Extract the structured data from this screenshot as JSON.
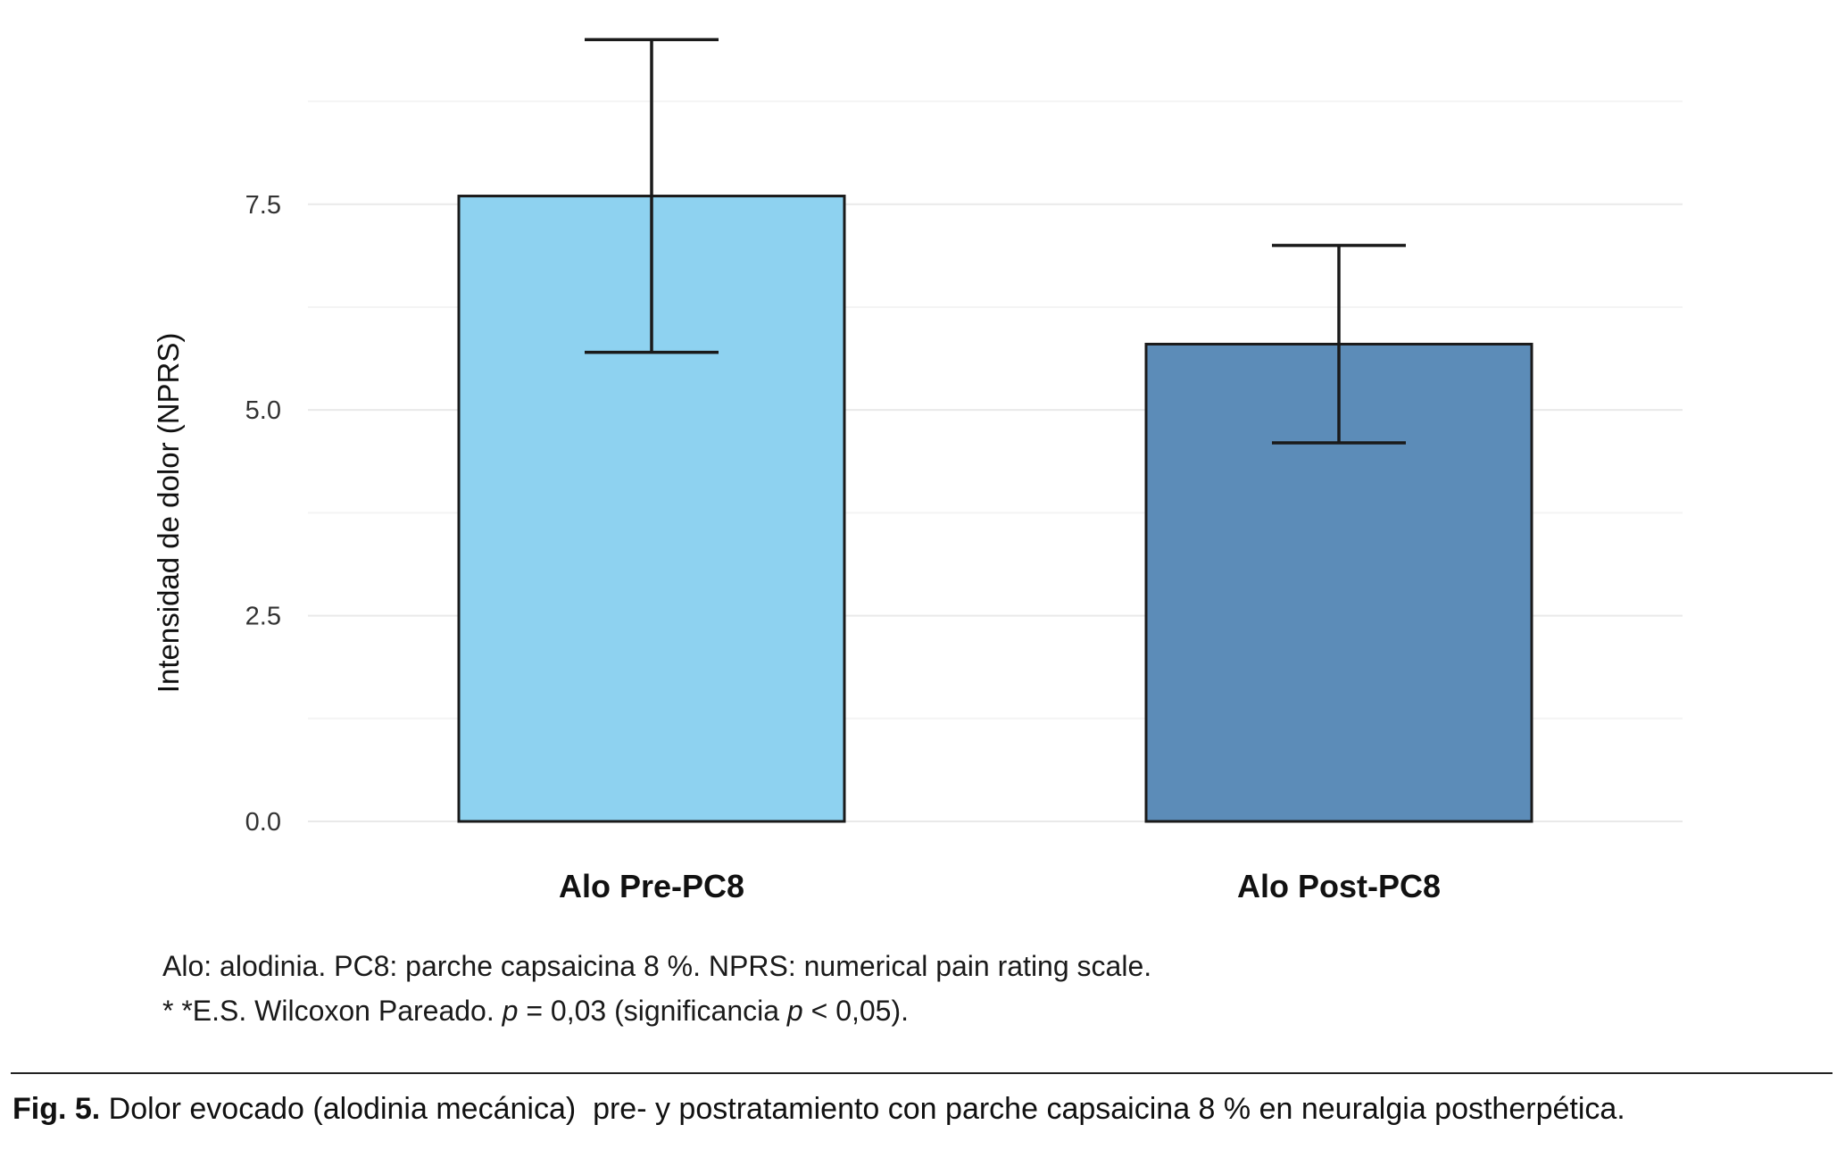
{
  "chart_data": {
    "type": "bar",
    "title": "",
    "categories": [
      "Alo Pre-PC8",
      "Alo Post-PC8"
    ],
    "values": [
      7.6,
      5.8
    ],
    "error_bars": [
      {
        "low": 5.7,
        "high": 9.5
      },
      {
        "low": 4.6,
        "high": 7.0
      }
    ],
    "bar_colors": [
      "#8ED2F0",
      "#5C8CB8"
    ],
    "bar_edge_color": "#1a1a1a",
    "error_bar_color": "#1a1a1a",
    "xlabel": "",
    "ylabel": "Intensidad de dolor (NPRS)",
    "yticks": [
      0,
      2.5,
      5,
      7.5
    ],
    "ytick_labels": [
      "0.0",
      "2.5",
      "5.0",
      "7.5"
    ],
    "ylim": [
      0,
      9.7
    ],
    "grid": true,
    "grid_color": "#e9e9e9",
    "minor_grid_color": "#f4f4f4",
    "legend_position": "none"
  },
  "notes": {
    "abbrev_line": "Alo: alodinia. PC8: parche capsaicina 8 %. NPRS: numerical pain rating scale.",
    "stats_prefix": "* *E.S. Wilcoxon Pareado. ",
    "stats_p": "p",
    "stats_mid": " = 0,03 (significancia ",
    "stats_p2": "p",
    "stats_suffix": " < 0,05)."
  },
  "caption": {
    "label": "Fig. 5.",
    "text": " Dolor evocado (alodinia mecánica)  pre- y postratamiento con parche capsaicina 8 % en neuralgia postherpética."
  }
}
